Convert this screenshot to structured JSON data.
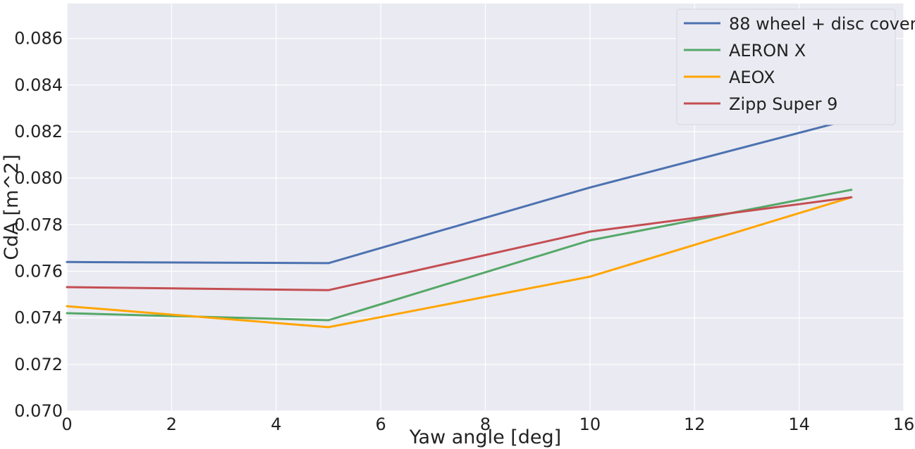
{
  "chart_data": {
    "type": "line",
    "xlabel": "Yaw angle [deg]",
    "ylabel": "CdA [m^2]",
    "xlim": [
      0,
      16
    ],
    "ylim": [
      0.07,
      0.0875
    ],
    "xticks": [
      0,
      2,
      4,
      6,
      8,
      10,
      12,
      14,
      16
    ],
    "xtick_labels": [
      "0",
      "2",
      "4",
      "6",
      "8",
      "10",
      "12",
      "14",
      "16"
    ],
    "yticks": [
      0.07,
      0.072,
      0.074,
      0.076,
      0.078,
      0.08,
      0.082,
      0.084,
      0.086
    ],
    "ytick_labels": [
      "0.070",
      "0.072",
      "0.074",
      "0.076",
      "0.078",
      "0.080",
      "0.082",
      "0.084",
      "0.086"
    ],
    "grid": true,
    "legend_position": "top-right",
    "x": [
      0,
      5,
      10,
      15
    ],
    "series": [
      {
        "name": "88 wheel + disc cover",
        "color": "#4c72b0",
        "values": [
          0.0764,
          0.07635,
          0.0796,
          0.08253
        ]
      },
      {
        "name": "AERON X",
        "color": "#55a868",
        "values": [
          0.0742,
          0.0739,
          0.07733,
          0.0795
        ]
      },
      {
        "name": "AEOX",
        "color": "#ffa500",
        "values": [
          0.0745,
          0.0736,
          0.07577,
          0.07918
        ]
      },
      {
        "name": "Zipp Super 9",
        "color": "#c44e52",
        "values": [
          0.07532,
          0.07519,
          0.0777,
          0.07918
        ]
      }
    ]
  }
}
